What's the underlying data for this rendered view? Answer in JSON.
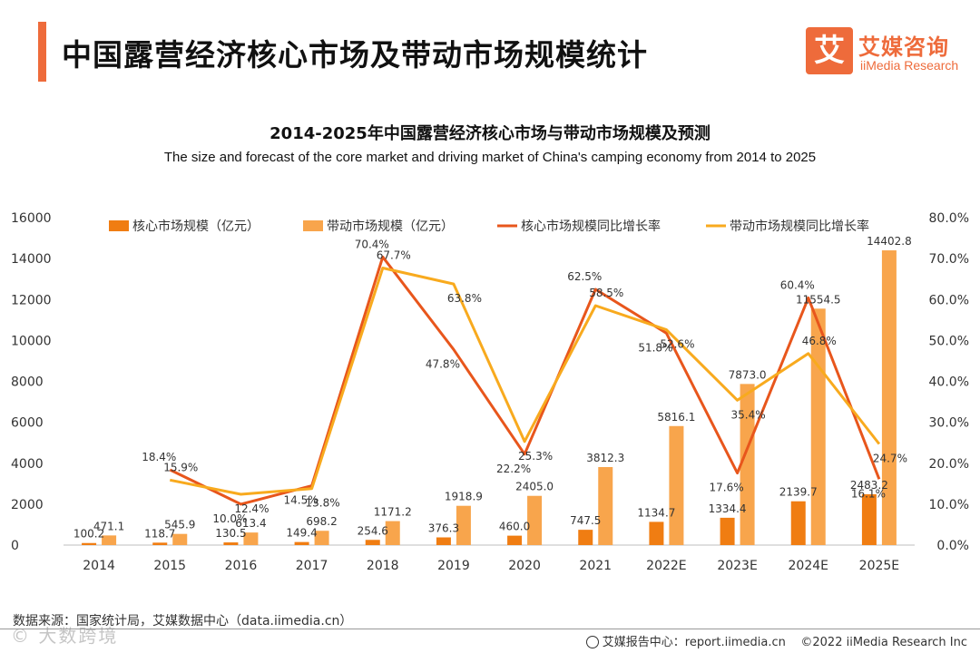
{
  "header": {
    "title": "中国露营经济核心市场及带动市场规模统计",
    "logo_mark": "艾",
    "logo_cn": "艾媒咨询",
    "logo_en": "iiMedia Research"
  },
  "chart_data": {
    "type": "bar",
    "title": "2014-2025年中国露营经济核心市场与带动市场规模及预测",
    "subtitle": "The size and forecast of the core market and driving market of China's camping economy from 2014 to 2025",
    "categories": [
      "2014",
      "2015",
      "2016",
      "2017",
      "2018",
      "2019",
      "2020",
      "2021",
      "2022E",
      "2023E",
      "2024E",
      "2025E"
    ],
    "series": [
      {
        "name": "核心市场规模（亿元）",
        "type": "bar",
        "axis": "left",
        "color": "#f07d12",
        "values": [
          100.2,
          118.7,
          130.5,
          149.4,
          254.6,
          376.3,
          460.0,
          747.5,
          1134.7,
          1334.4,
          2139.7,
          2483.2
        ],
        "labels": [
          "100.2",
          "118.7",
          "130.5",
          "149.4",
          "254.6",
          "376.3",
          "460.0",
          "747.5",
          "1134.7",
          "1334.4",
          "2139.7",
          "2483.2"
        ]
      },
      {
        "name": "带动市场规模（亿元）",
        "type": "bar",
        "axis": "left",
        "color": "#f8a54c",
        "values": [
          471.1,
          545.9,
          613.4,
          698.2,
          1171.2,
          1918.9,
          2405.0,
          3812.3,
          5816.1,
          7873.0,
          11554.5,
          14402.8
        ],
        "labels": [
          "471.1",
          "545.9",
          "613.4",
          "698.2",
          "1171.2",
          "1918.9",
          "2405.0",
          "3812.3",
          "5816.1",
          "7873.0",
          "11554.5",
          "14402.8"
        ]
      },
      {
        "name": "核心市场规模同比增长率",
        "type": "line",
        "axis": "right",
        "color": "#e8561c",
        "values": [
          null,
          18.4,
          10.0,
          14.5,
          70.4,
          47.8,
          22.2,
          62.5,
          51.8,
          17.6,
          60.4,
          16.1
        ],
        "labels": [
          "",
          "18.4%",
          "10.0%",
          "14.5%",
          "70.4%",
          "47.8%",
          "22.2%",
          "62.5%",
          "51.8%",
          "17.6%",
          "60.4%",
          "16.1%"
        ]
      },
      {
        "name": "带动市场规模同比增长率",
        "type": "line",
        "axis": "right",
        "color": "#f8aa1e",
        "values": [
          null,
          15.9,
          12.4,
          13.8,
          67.7,
          63.8,
          25.3,
          58.5,
          52.6,
          35.4,
          46.8,
          24.7
        ],
        "labels": [
          "",
          "15.9%",
          "12.4%",
          "13.8%",
          "67.7%",
          "63.8%",
          "25.3%",
          "58.5%",
          "52.6%",
          "35.4%",
          "46.8%",
          "24.7%"
        ]
      }
    ],
    "y_left": {
      "min": 0,
      "max": 16000,
      "ticks": [
        "0",
        "2000",
        "4000",
        "6000",
        "8000",
        "10000",
        "12000",
        "14000",
        "16000"
      ]
    },
    "y_right": {
      "min": 0,
      "max": 80,
      "ticks": [
        "0.0%",
        "10.0%",
        "20.0%",
        "30.0%",
        "40.0%",
        "50.0%",
        "60.0%",
        "70.0%",
        "80.0%"
      ]
    },
    "legend_position": "top",
    "grid": false
  },
  "footer": {
    "source": "数据来源：国家统计局，艾媒数据中心（data.iimedia.cn）",
    "report": "艾媒报告中心：report.iimedia.cn",
    "copyright": "©2022  iiMedia Research  Inc",
    "watermark": "© 大数跨境"
  }
}
